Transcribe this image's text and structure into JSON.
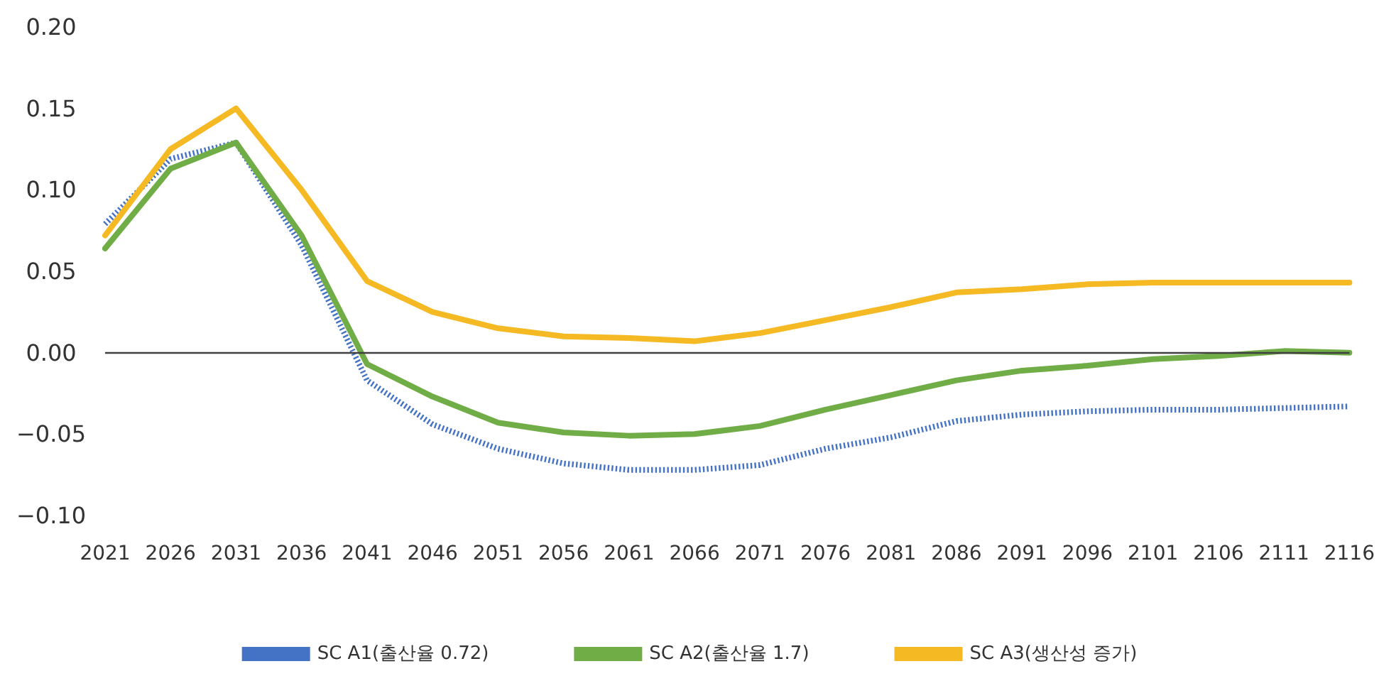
{
  "chart_data": {
    "type": "line",
    "categories": [
      "2021",
      "2026",
      "2031",
      "2036",
      "2041",
      "2046",
      "2051",
      "2056",
      "2061",
      "2066",
      "2071",
      "2076",
      "2081",
      "2086",
      "2091",
      "2096",
      "2101",
      "2106",
      "2111",
      "2116"
    ],
    "series": [
      {
        "name": "SC A1(출산율 0.72)",
        "color": "#4472c4",
        "line_style": "dotted",
        "values": [
          0.079,
          0.119,
          0.129,
          0.066,
          -0.017,
          -0.044,
          -0.059,
          -0.068,
          -0.072,
          -0.072,
          -0.069,
          -0.059,
          -0.052,
          -0.042,
          -0.038,
          -0.036,
          -0.035,
          -0.035,
          -0.034,
          -0.033
        ]
      },
      {
        "name": "SC A2(출산율 1.7)",
        "color": "#70ad47",
        "line_style": "solid",
        "values": [
          0.064,
          0.113,
          0.129,
          0.072,
          -0.007,
          -0.027,
          -0.043,
          -0.049,
          -0.051,
          -0.05,
          -0.045,
          -0.035,
          -0.026,
          -0.017,
          -0.011,
          -0.008,
          -0.004,
          -0.002,
          0.001,
          0.0
        ]
      },
      {
        "name": "SC A3(생산성 증가)",
        "color": "#f4b923",
        "line_style": "solid",
        "values": [
          0.072,
          0.125,
          0.15,
          0.1,
          0.044,
          0.025,
          0.015,
          0.01,
          0.009,
          0.007,
          0.012,
          0.02,
          0.028,
          0.037,
          0.039,
          0.042,
          0.043,
          0.043,
          0.043,
          0.043
        ]
      }
    ],
    "ylim": [
      -0.1,
      0.2
    ],
    "yticks": [
      {
        "value": -0.1,
        "label": "−0.10"
      },
      {
        "value": -0.05,
        "label": "−0.05"
      },
      {
        "value": 0,
        "label": "0.00"
      },
      {
        "value": 0.05,
        "label": "0.05"
      },
      {
        "value": 0.1,
        "label": "0.10"
      },
      {
        "value": 0.15,
        "label": "0.15"
      },
      {
        "value": 0.2,
        "label": "0.20"
      }
    ],
    "ref_lines": [
      {
        "axis": "y",
        "value": 0,
        "color": "#404040"
      }
    ],
    "grid": false,
    "legend": "bottom",
    "marker": "none"
  }
}
